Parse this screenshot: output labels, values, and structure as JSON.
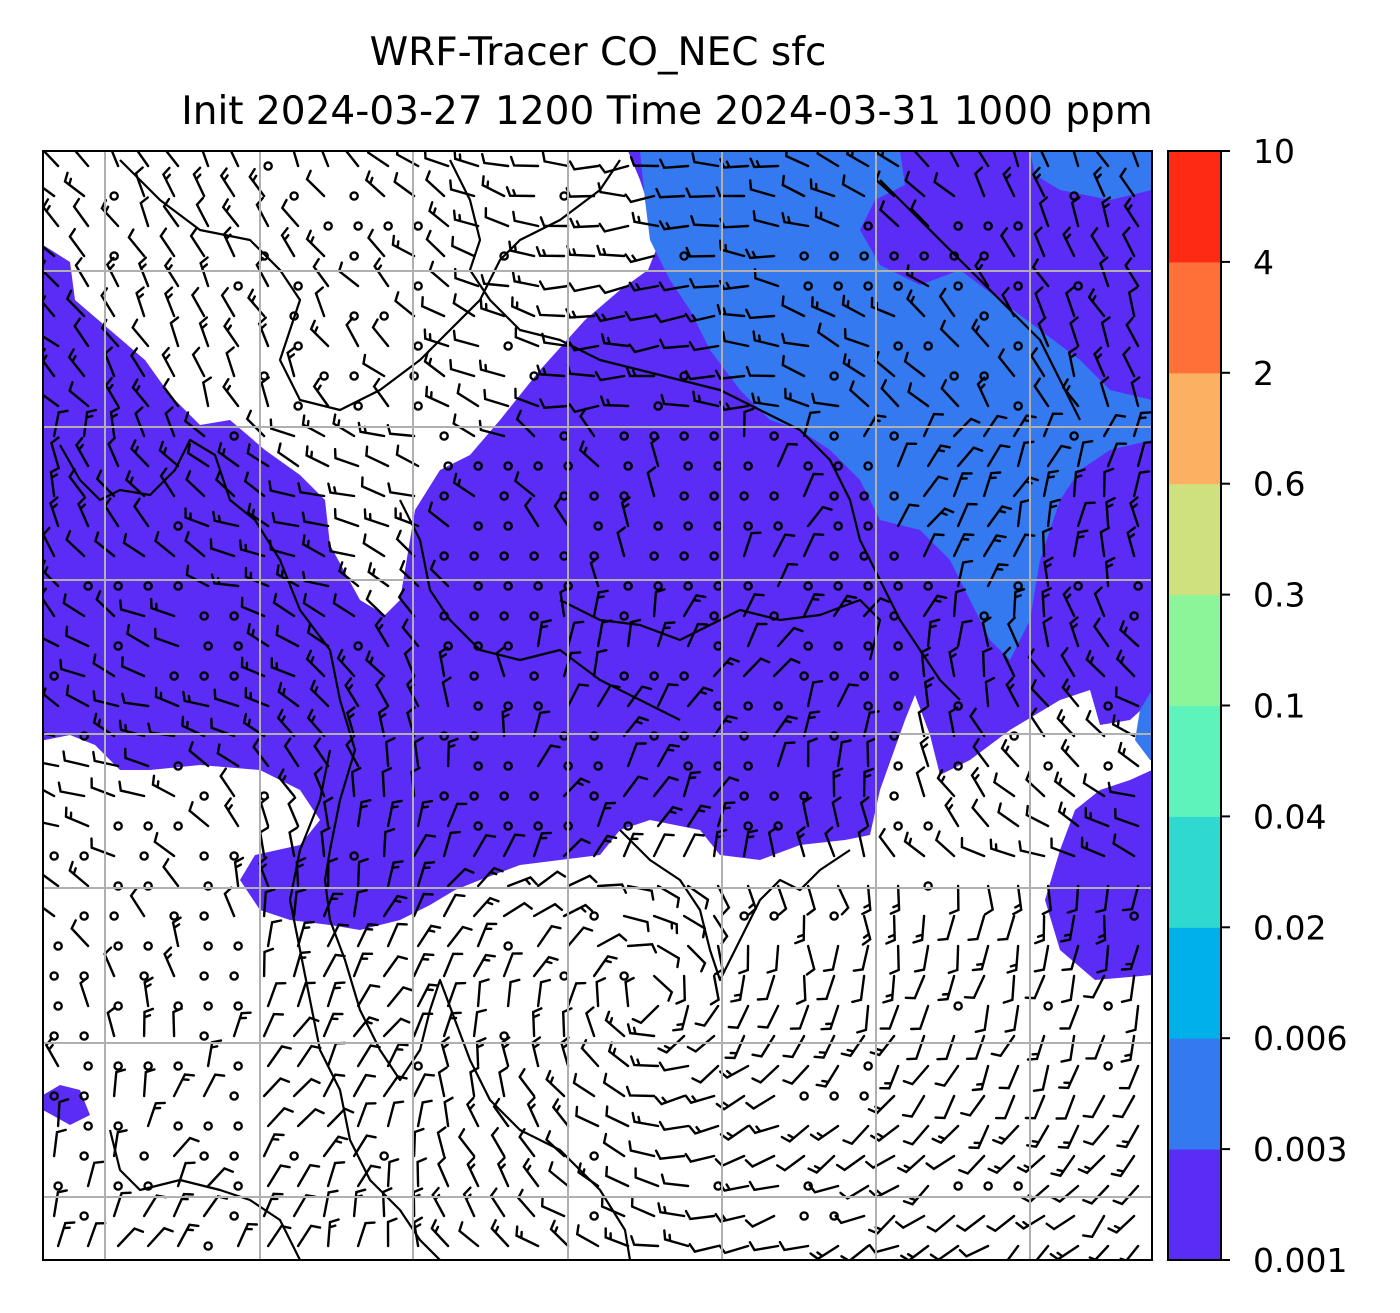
{
  "title": {
    "line1": "WRF-Tracer CO_NEC sfc",
    "line2": "Init 2024-03-27 1200 Time 2024-03-31 1000 ppm"
  },
  "colorbar": {
    "levels": [
      "0.001",
      "0.003",
      "0.006",
      "0.02",
      "0.04",
      "0.1",
      "0.3",
      "0.6",
      "2",
      "4",
      "10"
    ],
    "colors": [
      "#5b2cf6",
      "#3479f0",
      "#00b0e8",
      "#2fd9cf",
      "#5ef3ba",
      "#8cf59a",
      "#cfe07f",
      "#fbb161",
      "#ff7038",
      "#ff2a13"
    ]
  },
  "map": {
    "low_fill_color": "#5b2cf6",
    "mid_fill_color": "#3479f0",
    "coast_color": "#000000",
    "grid_color": "#b0b0b0",
    "wind_barb_color": "#000000",
    "gridlines": "on"
  }
}
